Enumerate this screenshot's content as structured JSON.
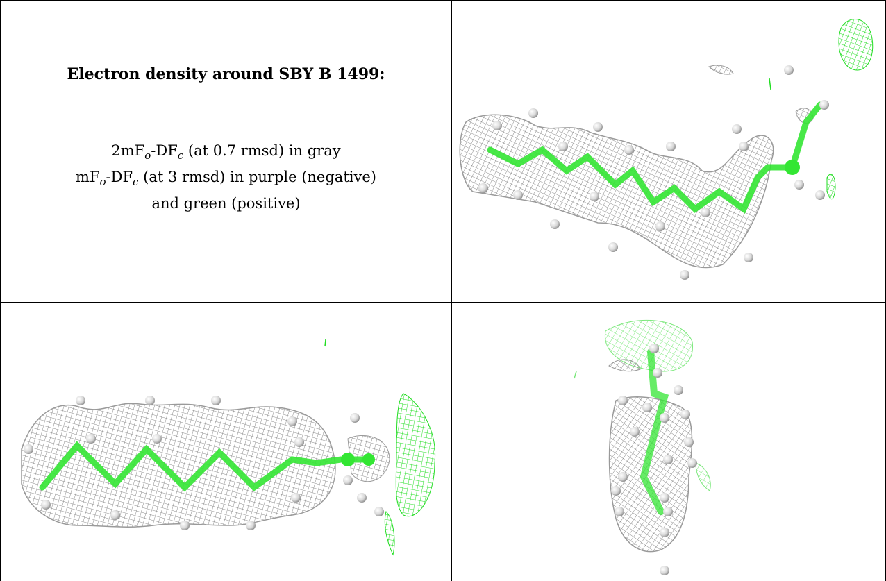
{
  "caption": {
    "title": "Electron density around SBY B 1499:",
    "line1_a": "2mF",
    "line1_sub1": "o",
    "line1_b": "-DF",
    "line1_sub2": "c",
    "line1_c": " (at 0.7 rmsd) in gray",
    "line2_a": "mF",
    "line2_sub1": "o",
    "line2_b": "-DF",
    "line2_sub2": "c",
    "line2_c": " (at 3 rmsd) in purple (negative)",
    "line3": "and green (positive)"
  },
  "colors": {
    "density_2fofc": "#8a8a8a",
    "density_positive": "#22dd22",
    "bond": "#33e633",
    "hydrogen": "#e0e0e0"
  },
  "panels": [
    {
      "name": "density-view-1",
      "icon": "molecule-density-icon"
    },
    {
      "name": "density-view-2",
      "icon": "molecule-density-icon"
    },
    {
      "name": "density-view-3",
      "icon": "molecule-density-icon"
    }
  ]
}
